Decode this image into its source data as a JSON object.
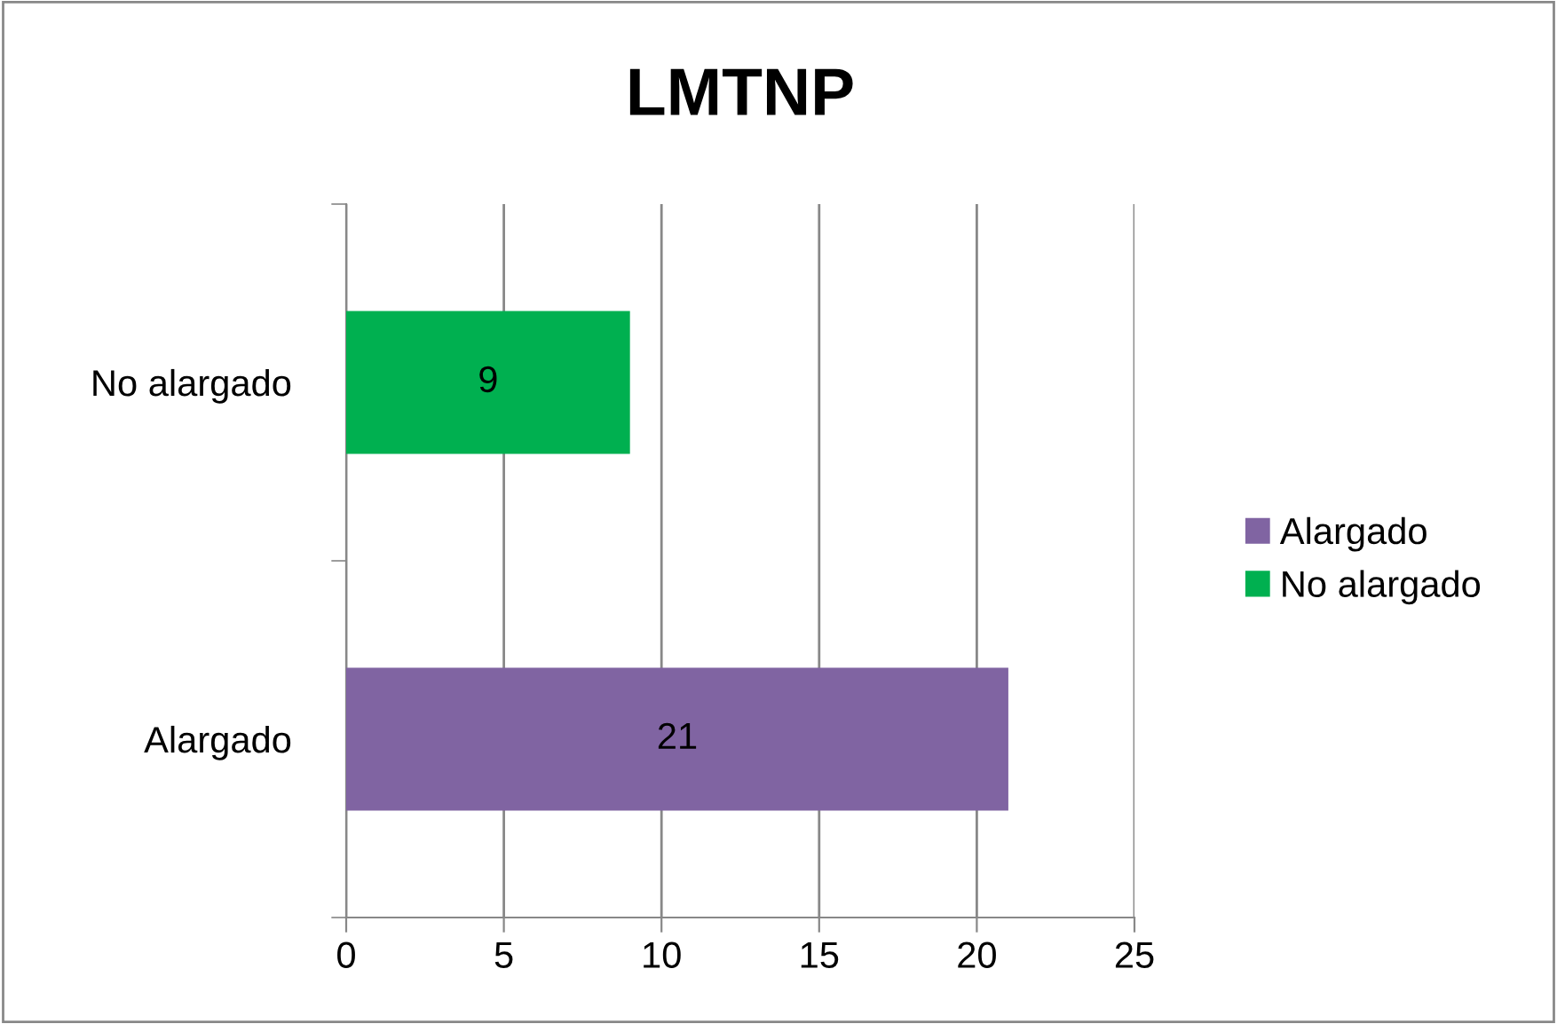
{
  "chart_data": {
    "type": "bar",
    "orientation": "horizontal",
    "title": "LMTNP",
    "categories": [
      "No alargado",
      "Alargado"
    ],
    "series": [
      {
        "name": "Alargado",
        "color": "#8064a2",
        "values": [
          null,
          21
        ]
      },
      {
        "name": "No alargado",
        "color": "#00b050",
        "values": [
          9,
          null
        ]
      }
    ],
    "xlim": [
      0,
      25
    ],
    "xticks": [
      0,
      5,
      10,
      15,
      20,
      25
    ],
    "grid": "x",
    "legend": "right",
    "data_labels": true
  }
}
